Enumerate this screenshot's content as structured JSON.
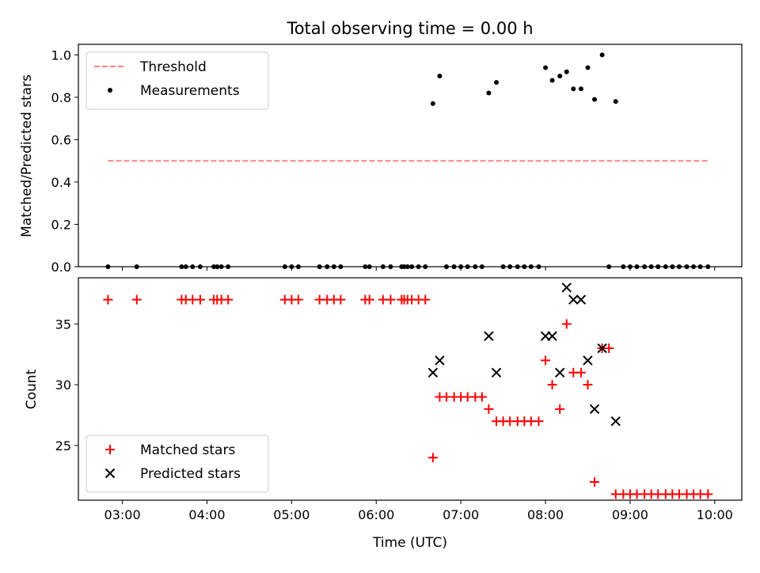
{
  "figure": {
    "title": "Total observing time = 0.00 h",
    "xlabel": "Time (UTC)",
    "xticks": [
      {
        "t": 3,
        "label": "03:00"
      },
      {
        "t": 4,
        "label": "04:00"
      },
      {
        "t": 5,
        "label": "05:00"
      },
      {
        "t": 6,
        "label": "06:00"
      },
      {
        "t": 7,
        "label": "07:00"
      },
      {
        "t": 8,
        "label": "08:00"
      },
      {
        "t": 9,
        "label": "09:00"
      },
      {
        "t": 10,
        "label": "10:00"
      }
    ],
    "xlim": [
      2.48,
      10.32
    ]
  },
  "chart_data": [
    {
      "type": "scatter",
      "ylabel": "Matched/Predicted stars",
      "ylim": [
        0,
        1.05
      ],
      "yticks": [
        0.0,
        0.2,
        0.4,
        0.6,
        0.8,
        1.0
      ],
      "ytick_labels": [
        "0.0",
        "0.2",
        "0.4",
        "0.6",
        "0.8",
        "1.0"
      ],
      "legend_position": "top-left",
      "threshold": {
        "name": "Threshold",
        "value": 0.5,
        "x_range": [
          2.83,
          9.93
        ],
        "color": "#ff8080"
      },
      "series": [
        {
          "name": "Measurements",
          "color": "#000000",
          "points": [
            [
              2.83,
              0
            ],
            [
              3.17,
              0
            ],
            [
              3.7,
              0
            ],
            [
              3.75,
              0
            ],
            [
              3.83,
              0
            ],
            [
              3.92,
              0
            ],
            [
              4.08,
              0
            ],
            [
              4.12,
              0
            ],
            [
              4.17,
              0
            ],
            [
              4.25,
              0
            ],
            [
              4.92,
              0
            ],
            [
              5.0,
              0
            ],
            [
              5.08,
              0
            ],
            [
              5.33,
              0
            ],
            [
              5.42,
              0
            ],
            [
              5.5,
              0
            ],
            [
              5.58,
              0
            ],
            [
              5.87,
              0
            ],
            [
              5.92,
              0
            ],
            [
              6.08,
              0
            ],
            [
              6.17,
              0
            ],
            [
              6.3,
              0
            ],
            [
              6.33,
              0
            ],
            [
              6.37,
              0
            ],
            [
              6.42,
              0
            ],
            [
              6.5,
              0
            ],
            [
              6.58,
              0
            ],
            [
              6.67,
              0.77
            ],
            [
              6.75,
              0.9
            ],
            [
              6.83,
              0
            ],
            [
              6.92,
              0
            ],
            [
              7.0,
              0
            ],
            [
              7.08,
              0
            ],
            [
              7.17,
              0
            ],
            [
              7.25,
              0
            ],
            [
              7.33,
              0.82
            ],
            [
              7.42,
              0.87
            ],
            [
              7.5,
              0
            ],
            [
              7.58,
              0
            ],
            [
              7.67,
              0
            ],
            [
              7.75,
              0
            ],
            [
              7.83,
              0
            ],
            [
              7.92,
              0
            ],
            [
              8.0,
              0.94
            ],
            [
              8.08,
              0.88
            ],
            [
              8.17,
              0.9
            ],
            [
              8.25,
              0.92
            ],
            [
              8.33,
              0.84
            ],
            [
              8.42,
              0.84
            ],
            [
              8.5,
              0.94
            ],
            [
              8.58,
              0.79
            ],
            [
              8.67,
              1.0
            ],
            [
              8.75,
              0
            ],
            [
              8.83,
              0.78
            ],
            [
              8.92,
              0
            ],
            [
              9.0,
              0
            ],
            [
              9.08,
              0
            ],
            [
              9.17,
              0
            ],
            [
              9.25,
              0
            ],
            [
              9.33,
              0
            ],
            [
              9.42,
              0
            ],
            [
              9.5,
              0
            ],
            [
              9.58,
              0
            ],
            [
              9.67,
              0
            ],
            [
              9.75,
              0
            ],
            [
              9.83,
              0
            ],
            [
              9.92,
              0
            ]
          ]
        }
      ]
    },
    {
      "type": "scatter",
      "ylabel": "Count",
      "ylim": [
        20.5,
        38.8
      ],
      "yticks": [
        25,
        30,
        35
      ],
      "ytick_labels": [
        "25",
        "30",
        "35"
      ],
      "legend_position": "bottom-left",
      "series": [
        {
          "name": "Matched stars",
          "color": "#ff0000",
          "marker": "plus",
          "points": [
            [
              2.83,
              37
            ],
            [
              3.17,
              37
            ],
            [
              3.7,
              37
            ],
            [
              3.75,
              37
            ],
            [
              3.83,
              37
            ],
            [
              3.92,
              37
            ],
            [
              4.08,
              37
            ],
            [
              4.12,
              37
            ],
            [
              4.17,
              37
            ],
            [
              4.25,
              37
            ],
            [
              4.92,
              37
            ],
            [
              5.0,
              37
            ],
            [
              5.08,
              37
            ],
            [
              5.33,
              37
            ],
            [
              5.42,
              37
            ],
            [
              5.5,
              37
            ],
            [
              5.58,
              37
            ],
            [
              5.87,
              37
            ],
            [
              5.92,
              37
            ],
            [
              6.08,
              37
            ],
            [
              6.17,
              37
            ],
            [
              6.3,
              37
            ],
            [
              6.33,
              37
            ],
            [
              6.37,
              37
            ],
            [
              6.42,
              37
            ],
            [
              6.5,
              37
            ],
            [
              6.58,
              37
            ],
            [
              6.67,
              24
            ],
            [
              6.75,
              29
            ],
            [
              6.83,
              29
            ],
            [
              6.92,
              29
            ],
            [
              7.0,
              29
            ],
            [
              7.08,
              29
            ],
            [
              7.17,
              29
            ],
            [
              7.25,
              29
            ],
            [
              7.33,
              28
            ],
            [
              7.42,
              27
            ],
            [
              7.5,
              27
            ],
            [
              7.58,
              27
            ],
            [
              7.67,
              27
            ],
            [
              7.75,
              27
            ],
            [
              7.83,
              27
            ],
            [
              7.92,
              27
            ],
            [
              8.0,
              32
            ],
            [
              8.08,
              30
            ],
            [
              8.17,
              28
            ],
            [
              8.25,
              35
            ],
            [
              8.33,
              31
            ],
            [
              8.42,
              31
            ],
            [
              8.5,
              30
            ],
            [
              8.58,
              22
            ],
            [
              8.67,
              33
            ],
            [
              8.75,
              33
            ],
            [
              8.83,
              21
            ],
            [
              8.92,
              21
            ],
            [
              9.0,
              21
            ],
            [
              9.08,
              21
            ],
            [
              9.17,
              21
            ],
            [
              9.25,
              21
            ],
            [
              9.33,
              21
            ],
            [
              9.42,
              21
            ],
            [
              9.5,
              21
            ],
            [
              9.58,
              21
            ],
            [
              9.67,
              21
            ],
            [
              9.75,
              21
            ],
            [
              9.83,
              21
            ],
            [
              9.92,
              21
            ]
          ]
        },
        {
          "name": "Predicted stars",
          "color": "#000000",
          "marker": "x",
          "points": [
            [
              6.67,
              31
            ],
            [
              6.75,
              32
            ],
            [
              7.33,
              34
            ],
            [
              7.42,
              31
            ],
            [
              8.0,
              34
            ],
            [
              8.08,
              34
            ],
            [
              8.17,
              31
            ],
            [
              8.25,
              38
            ],
            [
              8.33,
              37
            ],
            [
              8.42,
              37
            ],
            [
              8.5,
              32
            ],
            [
              8.58,
              28
            ],
            [
              8.67,
              33
            ],
            [
              8.83,
              27
            ]
          ]
        }
      ]
    }
  ]
}
